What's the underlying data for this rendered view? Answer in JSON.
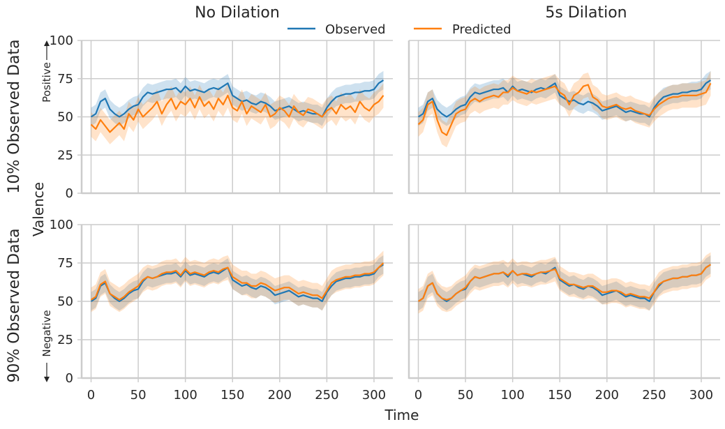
{
  "chart_data": {
    "type": "line",
    "layout": "2x2 facet grid",
    "col_titles": [
      "No Dilation",
      "5s Dilation"
    ],
    "row_titles": [
      "10% Observed Data",
      "90% Observed Data"
    ],
    "xlabel": "Time",
    "ylabel": "Valence",
    "positive_label": "Positive",
    "negative_label": "Negative",
    "xlim": [
      -10,
      320
    ],
    "ylim": [
      0,
      100
    ],
    "xticks": [
      0,
      50,
      100,
      150,
      200,
      250,
      300
    ],
    "yticks": [
      0,
      25,
      50,
      75,
      100
    ],
    "legend": [
      "Observed",
      "Predicted"
    ],
    "legend_placement": "top-center",
    "grid": true,
    "colors": {
      "observed": "#1f77b4",
      "predicted": "#ff7f0e"
    },
    "observed_series": {
      "name": "Observed",
      "x": [
        0,
        5,
        10,
        15,
        20,
        25,
        30,
        35,
        40,
        45,
        50,
        55,
        60,
        65,
        70,
        75,
        80,
        85,
        90,
        95,
        100,
        105,
        110,
        115,
        120,
        125,
        130,
        135,
        140,
        145,
        150,
        155,
        160,
        165,
        170,
        175,
        180,
        185,
        190,
        195,
        200,
        205,
        210,
        215,
        220,
        225,
        230,
        235,
        240,
        245,
        250,
        255,
        260,
        265,
        270,
        275,
        280,
        285,
        290,
        295,
        300,
        305,
        310
      ],
      "values": [
        50,
        52,
        60,
        62,
        55,
        52,
        50,
        52,
        55,
        57,
        58,
        63,
        66,
        65,
        66,
        67,
        68,
        68,
        69,
        66,
        70,
        67,
        68,
        67,
        66,
        68,
        69,
        68,
        70,
        72,
        64,
        62,
        60,
        61,
        59,
        58,
        60,
        59,
        57,
        54,
        55,
        56,
        57,
        55,
        53,
        54,
        53,
        52,
        52,
        50,
        56,
        60,
        63,
        64,
        65,
        65,
        66,
        66,
        67,
        67,
        68,
        72,
        74
      ]
    },
    "panels": [
      {
        "row": "10% Observed Data",
        "col": "No Dilation",
        "predicted": [
          45,
          42,
          48,
          44,
          40,
          43,
          46,
          42,
          52,
          48,
          55,
          50,
          53,
          56,
          60,
          52,
          58,
          62,
          55,
          60,
          58,
          62,
          56,
          63,
          57,
          60,
          55,
          62,
          58,
          64,
          56,
          54,
          60,
          52,
          57,
          55,
          53,
          58,
          50,
          52,
          56,
          54,
          50,
          57,
          53,
          51,
          55,
          54,
          52,
          50,
          54,
          56,
          52,
          58,
          55,
          57,
          53,
          60,
          56,
          54,
          58,
          60,
          64
        ]
      },
      {
        "row": "10% Observed Data",
        "col": "5s Dilation",
        "predicted": [
          45,
          48,
          58,
          60,
          48,
          40,
          38,
          45,
          52,
          54,
          55,
          60,
          62,
          60,
          62,
          63,
          64,
          63,
          66,
          66,
          69,
          67,
          66,
          65,
          67,
          66,
          67,
          68,
          69,
          70,
          66,
          64,
          58,
          64,
          66,
          70,
          71,
          63,
          61,
          57,
          56,
          57,
          58,
          56,
          55,
          56,
          54,
          53,
          52,
          51,
          55,
          58,
          60,
          62,
          63,
          63,
          64,
          64,
          64,
          64,
          65,
          66,
          72
        ]
      },
      {
        "row": "90% Observed Data",
        "col": "No Dilation",
        "predicted": [
          51,
          53,
          61,
          63,
          55,
          53,
          51,
          53,
          56,
          58,
          60,
          64,
          66,
          65,
          66,
          68,
          69,
          69,
          70,
          67,
          71,
          68,
          69,
          68,
          67,
          69,
          70,
          69,
          71,
          72,
          66,
          64,
          62,
          62,
          60,
          60,
          62,
          61,
          59,
          57,
          58,
          59,
          59,
          57,
          55,
          56,
          55,
          54,
          54,
          52,
          57,
          62,
          64,
          65,
          66,
          66,
          67,
          67,
          68,
          68,
          69,
          72,
          75
        ]
      },
      {
        "row": "90% Observed Data",
        "col": "5s Dilation",
        "predicted": [
          50,
          52,
          60,
          62,
          55,
          52,
          51,
          52,
          55,
          57,
          59,
          63,
          66,
          65,
          66,
          67,
          68,
          68,
          69,
          67,
          70,
          67,
          68,
          68,
          67,
          68,
          69,
          69,
          70,
          71,
          65,
          63,
          61,
          61,
          60,
          59,
          60,
          60,
          58,
          56,
          56,
          57,
          57,
          56,
          54,
          55,
          54,
          53,
          53,
          52,
          56,
          61,
          63,
          64,
          65,
          65,
          66,
          66,
          67,
          67,
          68,
          72,
          74
        ]
      }
    ]
  }
}
